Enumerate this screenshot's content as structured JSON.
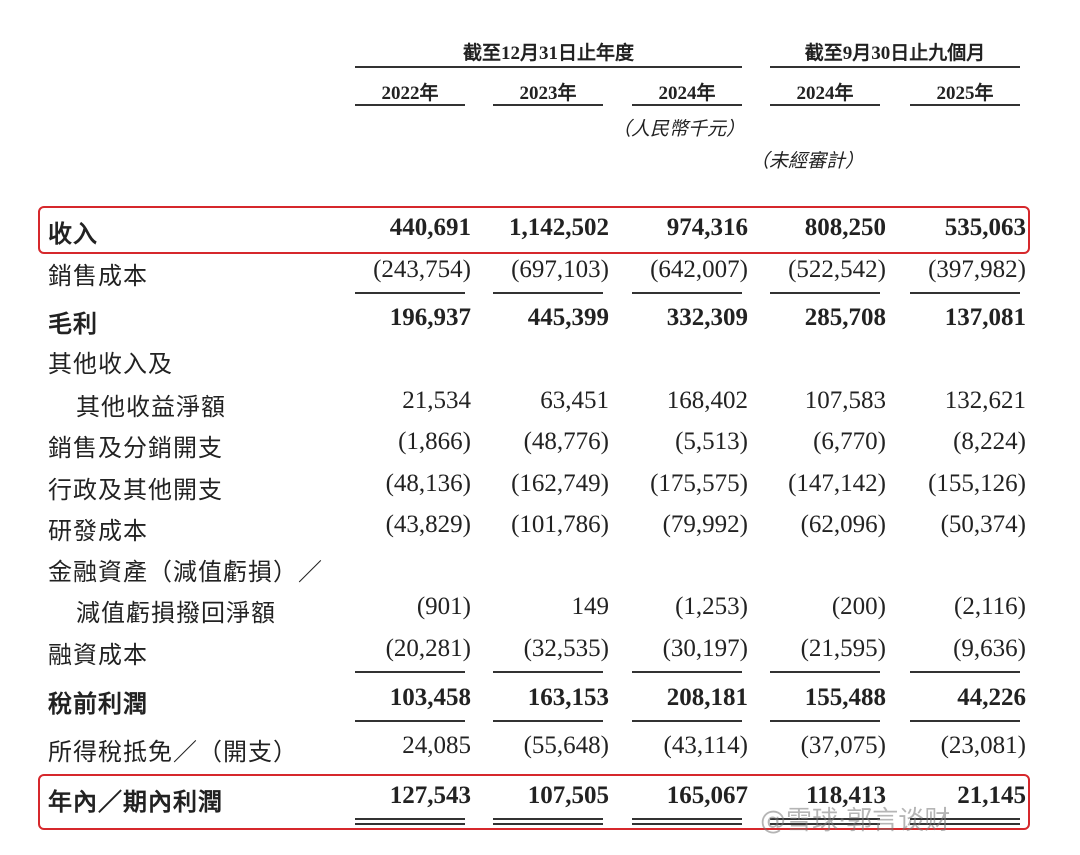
{
  "header": {
    "groups": [
      {
        "label": "截至12月31日止年度",
        "span": 3
      },
      {
        "label": "截至9月30日止九個月",
        "span": 2
      }
    ],
    "years": [
      "2022年",
      "2023年",
      "2024年",
      "2024年",
      "2025年"
    ],
    "notes": [
      {
        "label": "（人民幣千元）",
        "column": 2
      },
      {
        "label": "（未經審計）",
        "column": 3
      }
    ]
  },
  "table": {
    "rows": [
      {
        "label": [
          "收入"
        ],
        "values": [
          "440,691",
          "1,142,502",
          "974,316",
          "808,250",
          "535,063"
        ],
        "bold": true,
        "highlight": true
      },
      {
        "label": [
          "銷售成本"
        ],
        "values": [
          "(243,754)",
          "(697,103)",
          "(642,007)",
          "(522,542)",
          "(397,982)"
        ],
        "border": "single"
      },
      {
        "label": [
          "毛利"
        ],
        "values": [
          "196,937",
          "445,399",
          "332,309",
          "285,708",
          "137,081"
        ],
        "bold": true
      },
      {
        "label": [
          "其他收入及",
          "其他收益淨額"
        ],
        "values": [
          "21,534",
          "63,451",
          "168,402",
          "107,583",
          "132,621"
        ]
      },
      {
        "label": [
          "銷售及分銷開支"
        ],
        "values": [
          "(1,866)",
          "(48,776)",
          "(5,513)",
          "(6,770)",
          "(8,224)"
        ]
      },
      {
        "label": [
          "行政及其他開支"
        ],
        "values": [
          "(48,136)",
          "(162,749)",
          "(175,575)",
          "(147,142)",
          "(155,126)"
        ]
      },
      {
        "label": [
          "研發成本"
        ],
        "values": [
          "(43,829)",
          "(101,786)",
          "(79,992)",
          "(62,096)",
          "(50,374)"
        ]
      },
      {
        "label": [
          "金融資產（減值虧損）／",
          "減值虧損撥回淨額"
        ],
        "values": [
          "(901)",
          "149",
          "(1,253)",
          "(200)",
          "(2,116)"
        ]
      },
      {
        "label": [
          "融資成本"
        ],
        "values": [
          "(20,281)",
          "(32,535)",
          "(30,197)",
          "(21,595)",
          "(9,636)"
        ],
        "border": "single"
      },
      {
        "label": [
          "稅前利潤"
        ],
        "values": [
          "103,458",
          "163,153",
          "208,181",
          "155,488",
          "44,226"
        ],
        "bold": true,
        "border": "single"
      },
      {
        "label": [
          "所得稅抵免／（開支）"
        ],
        "values": [
          "24,085",
          "(55,648)",
          "(43,114)",
          "(37,075)",
          "(23,081)"
        ]
      },
      {
        "label": [
          "年內／期內利潤"
        ],
        "values": [
          "127,543",
          "107,505",
          "165,067",
          "118,413",
          "21,145"
        ],
        "bold": true,
        "highlight": true,
        "border": "double"
      }
    ]
  },
  "watermark": "@雪球·郭言谈财"
}
